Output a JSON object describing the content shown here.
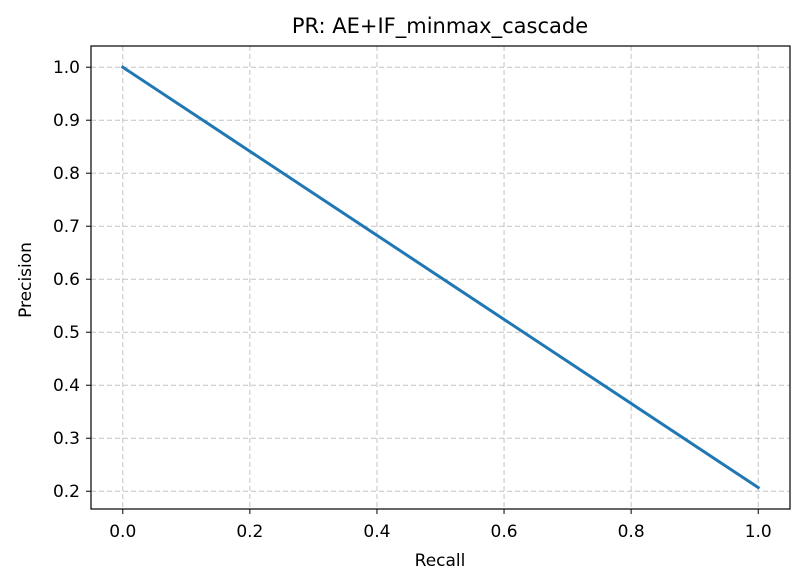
{
  "chart_data": {
    "type": "line",
    "title": "PR: AE+IF_minmax_cascade",
    "xlabel": "Recall",
    "ylabel": "Precision",
    "xlim": [
      -0.05,
      1.05
    ],
    "ylim": [
      0.1665,
      1.04
    ],
    "xticks": [
      0.0,
      0.2,
      0.4,
      0.6,
      0.8,
      1.0
    ],
    "yticks": [
      0.2,
      0.3,
      0.4,
      0.5,
      0.6,
      0.7,
      0.8,
      0.9,
      1.0
    ],
    "xtick_labels": [
      "0.0",
      "0.2",
      "0.4",
      "0.6",
      "0.8",
      "1.0"
    ],
    "ytick_labels": [
      "0.2",
      "0.3",
      "0.4",
      "0.5",
      "0.6",
      "0.7",
      "0.8",
      "0.9",
      "1.0"
    ],
    "grid": true,
    "series": [
      {
        "color": "#1f77b4",
        "x": [
          0.0,
          1.0
        ],
        "y": [
          1.0,
          0.207
        ]
      }
    ]
  }
}
